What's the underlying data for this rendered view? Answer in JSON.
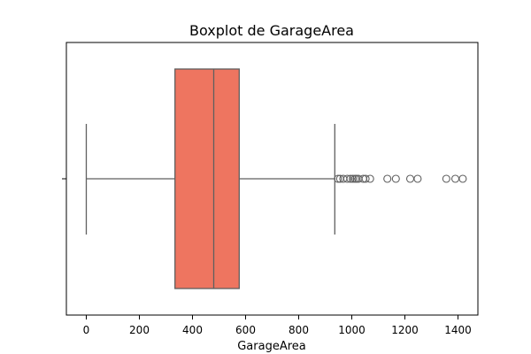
{
  "chart_data": {
    "type": "boxplot",
    "title": "Boxplot de GarageArea",
    "xlabel": "GarageArea",
    "ylabel": "",
    "orientation": "horizontal",
    "xlim": [
      -75,
      1475
    ],
    "xticks": [
      0,
      200,
      400,
      600,
      800,
      1000,
      1200,
      1400
    ],
    "grid": false,
    "box_color": "#ee7560",
    "line_color": "#5f5f5f",
    "box": {
      "whisker_low": 0,
      "q1": 334,
      "median": 480,
      "q3": 576,
      "whisker_high": 936
    },
    "outliers": [
      948,
      956,
      968,
      983,
      995,
      1004,
      1012,
      1018,
      1025,
      1043,
      1052,
      1069,
      1134,
      1166,
      1220,
      1248,
      1356,
      1390,
      1418
    ]
  }
}
